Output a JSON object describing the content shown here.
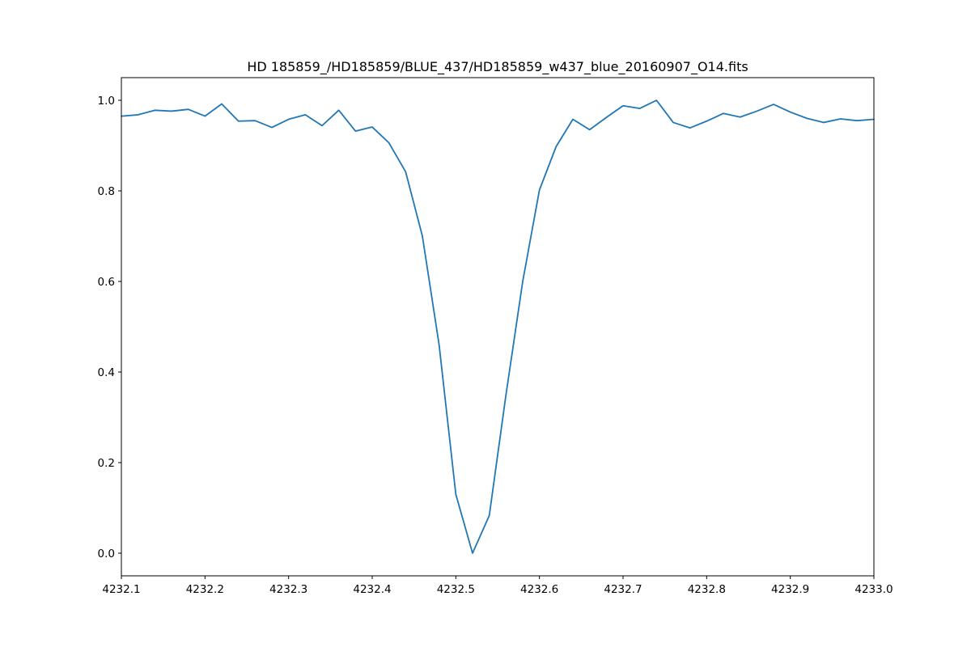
{
  "chart_data": {
    "type": "line",
    "title": "HD 185859_/HD185859/BLUE_437/HD185859_w437_blue_20160907_O14.fits",
    "xlabel": "",
    "ylabel": "",
    "xlim": [
      4232.1,
      4233.0
    ],
    "ylim": [
      -0.05,
      1.05
    ],
    "grid": false,
    "x_ticks": [
      "4232.1",
      "4232.2",
      "4232.3",
      "4232.4",
      "4232.5",
      "4232.6",
      "4232.7",
      "4232.8",
      "4232.9",
      "4233.0"
    ],
    "y_ticks": [
      "0.0",
      "0.2",
      "0.4",
      "0.6",
      "0.8",
      "1.0"
    ],
    "series": [
      {
        "color": "#1f77b4",
        "x": [
          4232.1,
          4232.12,
          4232.14,
          4232.16,
          4232.18,
          4232.2,
          4232.22,
          4232.24,
          4232.26,
          4232.28,
          4232.3,
          4232.32,
          4232.34,
          4232.36,
          4232.38,
          4232.4,
          4232.42,
          4232.44,
          4232.46,
          4232.48,
          4232.5,
          4232.52,
          4232.54,
          4232.56,
          4232.58,
          4232.6,
          4232.62,
          4232.64,
          4232.66,
          4232.68,
          4232.7,
          4232.72,
          4232.74,
          4232.76,
          4232.78,
          4232.8,
          4232.82,
          4232.84,
          4232.86,
          4232.88,
          4232.9,
          4232.92,
          4232.94,
          4232.96,
          4232.98,
          4233.0
        ],
        "y": [
          0.965,
          0.968,
          0.978,
          0.976,
          0.98,
          0.965,
          0.992,
          0.954,
          0.955,
          0.94,
          0.958,
          0.968,
          0.944,
          0.978,
          0.932,
          0.941,
          0.906,
          0.842,
          0.7,
          0.46,
          0.13,
          0.0,
          0.083,
          0.35,
          0.6,
          0.802,
          0.898,
          0.958,
          0.935,
          0.962,
          0.988,
          0.982,
          1.0,
          0.951,
          0.939,
          0.954,
          0.971,
          0.963,
          0.976,
          0.991,
          0.974,
          0.96,
          0.951,
          0.959,
          0.955,
          0.958
        ]
      }
    ]
  }
}
